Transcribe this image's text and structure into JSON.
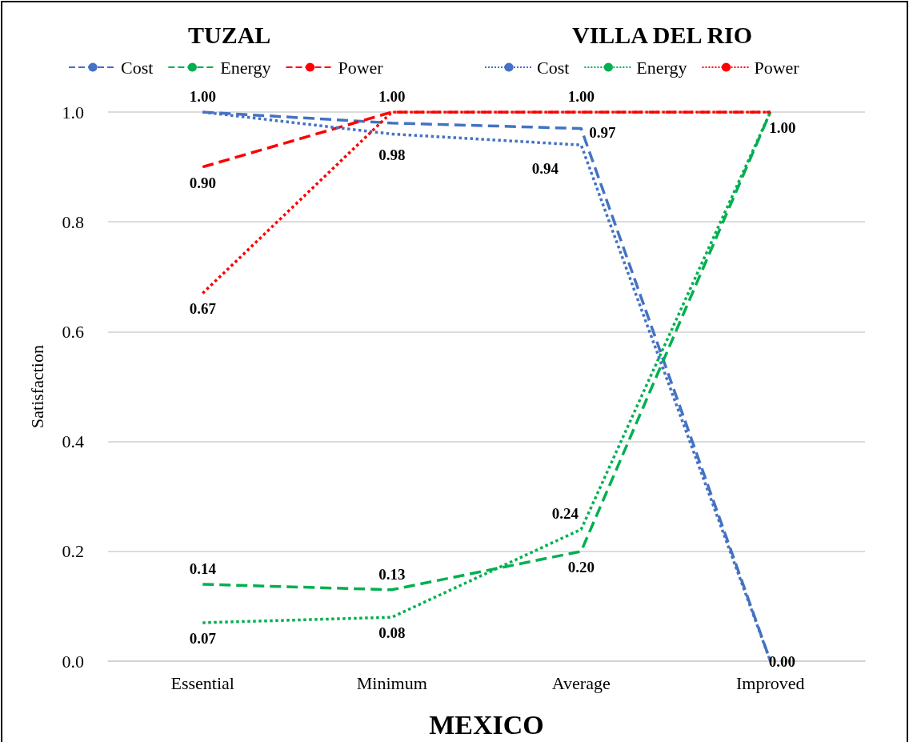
{
  "chart_data": {
    "type": "line",
    "xlabel": "MEXICO",
    "ylabel": "Satisfaction",
    "annotations": [
      "TUZAL",
      "VILLA DEL RIO"
    ],
    "categories": [
      "Essential",
      "Minimum",
      "Average",
      "Improved"
    ],
    "ylim": [
      0,
      1
    ],
    "yticks": [
      {
        "value": 0,
        "label": "0.0"
      },
      {
        "value": 0.2,
        "label": "0.2"
      },
      {
        "value": 0.4,
        "label": "0.4"
      },
      {
        "value": 0.6,
        "label": "0.6"
      },
      {
        "value": 0.8,
        "label": "0.8"
      },
      {
        "value": 1,
        "label": "1.0"
      }
    ],
    "grid": "y",
    "legend": "top",
    "marker": "none",
    "series": [
      {
        "name": "Cost",
        "color": "#4472c4",
        "line_style": "dashed",
        "values": [
          1.0,
          0.98,
          0.97,
          0.0
        ],
        "value_labels": [
          "1.00",
          "0.98",
          "0.97",
          "0.00"
        ]
      },
      {
        "name": "Energy",
        "color": "#00b050",
        "line_style": "dashed",
        "values": [
          0.14,
          0.13,
          0.2,
          1.0
        ],
        "value_labels": [
          "0.14",
          "0.13",
          "0.20",
          "1.00"
        ]
      },
      {
        "name": "Power",
        "color": "#ff0000",
        "line_style": "dashed",
        "values": [
          0.9,
          1.0,
          1.0,
          1.0
        ],
        "value_labels": [
          "0.90",
          "1.00",
          "1.00",
          null
        ]
      },
      {
        "name": "Cost",
        "color": "#4472c4",
        "line_style": "dotted",
        "values": [
          1.0,
          0.96,
          0.94,
          0.0
        ],
        "value_labels": [
          null,
          null,
          "0.94",
          null
        ]
      },
      {
        "name": "Energy",
        "color": "#00b050",
        "line_style": "dotted",
        "values": [
          0.07,
          0.08,
          0.24,
          1.0
        ],
        "value_labels": [
          "0.07",
          "0.08",
          "0.24",
          null
        ]
      },
      {
        "name": "Power",
        "color": "#ff0000",
        "line_style": "dotted",
        "values": [
          0.67,
          1.0,
          1.0,
          1.0
        ],
        "value_labels": [
          "0.67",
          null,
          null,
          null
        ]
      }
    ]
  }
}
